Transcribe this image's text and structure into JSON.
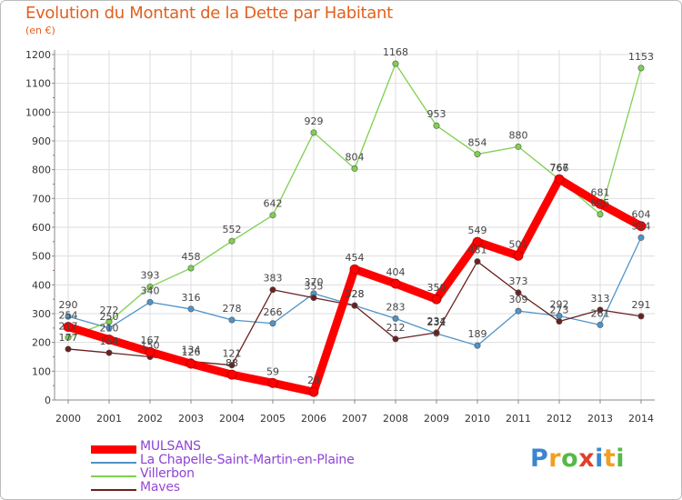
{
  "chart_data": {
    "type": "line",
    "title": "Evolution du Montant de la Dette par Habitant",
    "subtitle": "(en €)",
    "x": [
      "2000",
      "2001",
      "2002",
      "2003",
      "2004",
      "2005",
      "2006",
      "2007",
      "2008",
      "2009",
      "2010",
      "2011",
      "2012",
      "2013",
      "2014"
    ],
    "ylim": [
      0,
      1200
    ],
    "yticks": [
      "0",
      "100",
      "200",
      "300",
      "400",
      "500",
      "600",
      "700",
      "800",
      "900",
      "1000",
      "1100",
      "1200"
    ],
    "grid": true,
    "legend_position": "bottom-left",
    "series": [
      {
        "name": "MULSANS",
        "color": "#ff0000",
        "values": [
          254,
          210,
          167,
          126,
          88,
          59,
          28,
          454,
          404,
          350,
          549,
          501,
          767,
          681,
          604
        ]
      },
      {
        "name": "La Chapelle-Saint-Martin-en-Plaine",
        "color": "#4e93c9",
        "values": [
          290,
          250,
          340,
          316,
          278,
          266,
          370,
          328,
          283,
          231,
          189,
          309,
          292,
          261,
          564
        ]
      },
      {
        "name": "Villerbon",
        "color": "#7fd04f",
        "values": [
          217,
          272,
          393,
          458,
          552,
          642,
          929,
          804,
          1168,
          953,
          854,
          880,
          766,
          645,
          1153
        ]
      },
      {
        "name": "Maves",
        "color": "#6b2020",
        "values": [
          177,
          164,
          150,
          134,
          121,
          383,
          355,
          328,
          212,
          234,
          481,
          373,
          273,
          313,
          291
        ]
      }
    ]
  },
  "branding": {
    "letters": [
      "P",
      "r",
      "o",
      "x",
      "i",
      "t",
      "i"
    ],
    "colors": [
      "#3a86d0",
      "#f0a020",
      "#58b848",
      "#e0402c",
      "#3a86d0",
      "#f0a020",
      "#58b848"
    ]
  }
}
